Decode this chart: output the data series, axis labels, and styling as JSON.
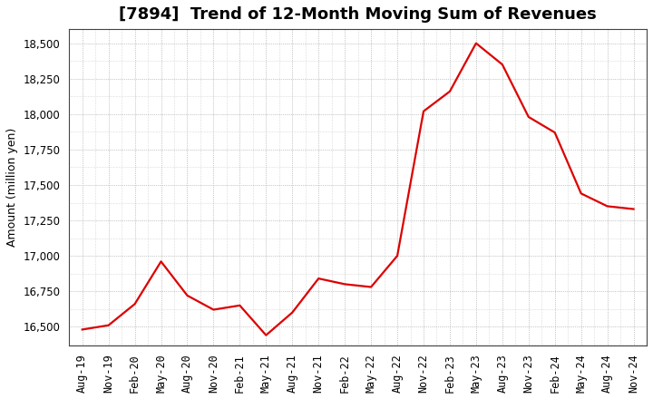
{
  "title": "[7894]  Trend of 12-Month Moving Sum of Revenues",
  "ylabel": "Amount (million yen)",
  "background_color": "#ffffff",
  "line_color": "#dd0000",
  "x_labels": [
    "Aug-19",
    "Nov-19",
    "Feb-20",
    "May-20",
    "Aug-20",
    "Nov-20",
    "Feb-21",
    "May-21",
    "Aug-21",
    "Nov-21",
    "Feb-22",
    "May-22",
    "Aug-22",
    "Nov-22",
    "Feb-23",
    "May-23",
    "Aug-23",
    "Nov-23",
    "Feb-24",
    "May-24",
    "Aug-24",
    "Nov-24"
  ],
  "y_values": [
    16480,
    16510,
    16660,
    16960,
    16720,
    16620,
    16650,
    16440,
    16600,
    16840,
    16800,
    16780,
    17000,
    18020,
    18160,
    18500,
    18350,
    17980,
    17870,
    17440,
    17350,
    17330
  ],
  "ylim": [
    16370,
    18600
  ],
  "yticks": [
    16500,
    16750,
    17000,
    17250,
    17500,
    17750,
    18000,
    18250,
    18500
  ],
  "title_fontsize": 13,
  "ylabel_fontsize": 9,
  "tick_fontsize": 8.5,
  "line_width": 1.6
}
